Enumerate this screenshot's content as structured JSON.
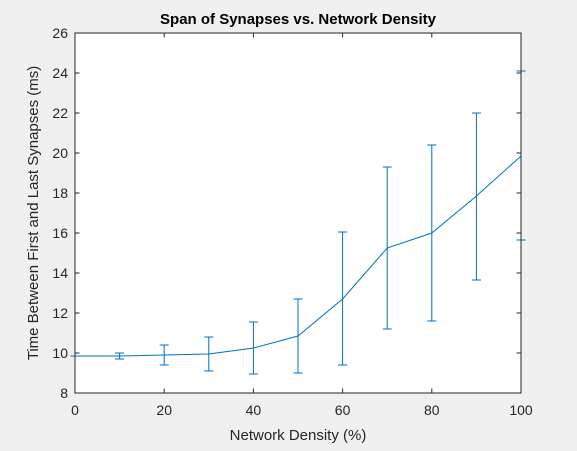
{
  "chart_data": {
    "type": "line",
    "title": "Span of Synapses vs. Network Density",
    "xlabel": "Network Density (%)",
    "ylabel": "Time Between First and Last Synapses (ms)",
    "xlim": [
      0,
      100
    ],
    "ylim": [
      8,
      26
    ],
    "xticks": [
      "0",
      "20",
      "40",
      "60",
      "80",
      "100"
    ],
    "yticks": [
      "8",
      "10",
      "12",
      "14",
      "16",
      "18",
      "20",
      "22",
      "24",
      "26"
    ],
    "grid": false,
    "legend": "none",
    "series": [
      {
        "x": [
          0,
          10,
          20,
          30,
          40,
          50,
          60,
          70,
          80,
          90,
          100
        ],
        "y": [
          9.85,
          9.85,
          9.9,
          9.95,
          10.25,
          10.85,
          12.7,
          15.25,
          16.0,
          17.85,
          19.85
        ],
        "err_low": [
          9.85,
          9.7,
          9.4,
          9.1,
          8.95,
          9.0,
          9.4,
          11.2,
          11.6,
          13.65,
          15.65
        ],
        "err_high": [
          9.85,
          10.0,
          10.4,
          10.8,
          11.55,
          12.7,
          16.05,
          19.3,
          20.4,
          22.0,
          24.1
        ],
        "color": "#0072BD"
      }
    ]
  }
}
